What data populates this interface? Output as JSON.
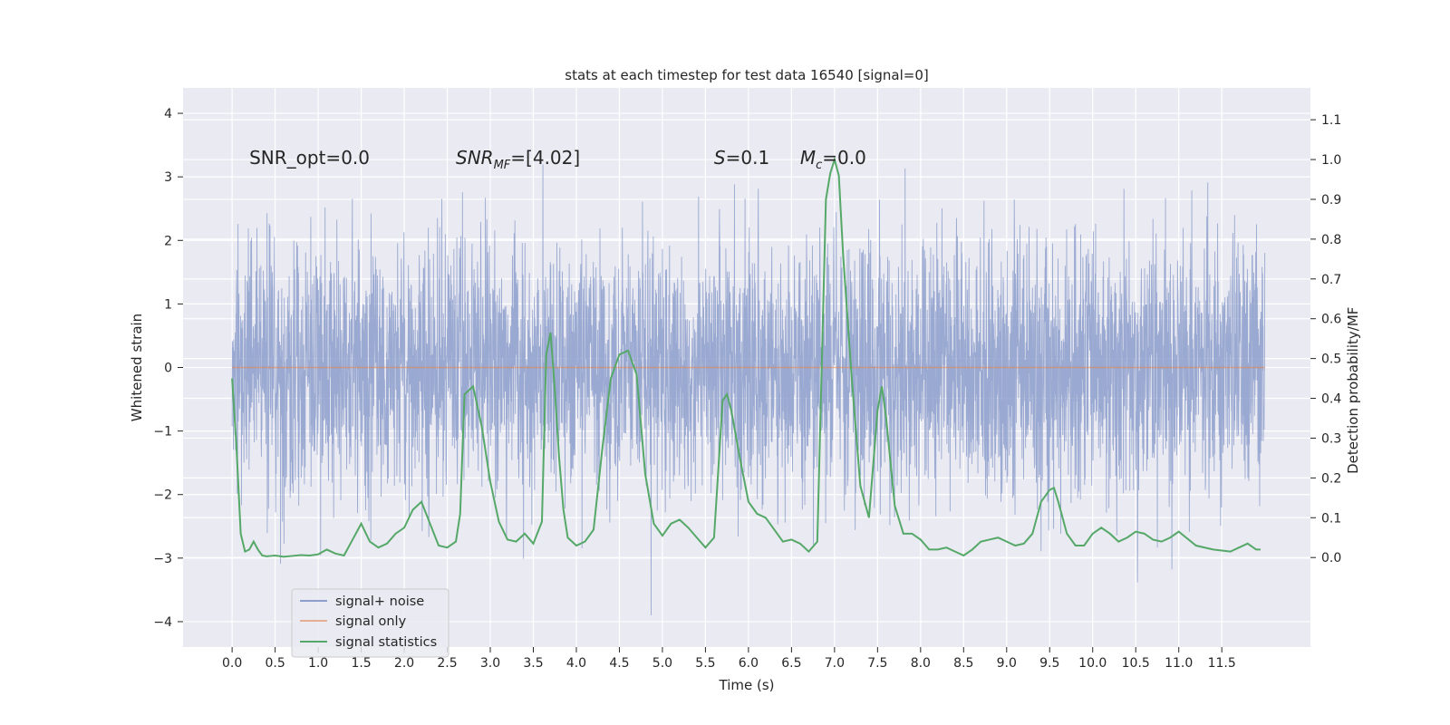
{
  "chart_data": {
    "type": "line",
    "title": "stats at each timestep for test data 16540 [signal=0]",
    "xlabel": "Time (s)",
    "ylabel": "Whitened strain",
    "y2label": "Detection probability/MF",
    "xlim": [
      -0.57,
      12.53
    ],
    "ylim": [
      -4.4,
      4.4
    ],
    "y2lim": [
      -0.225,
      1.18
    ],
    "x_ticks": [
      0.0,
      0.5,
      1.0,
      1.5,
      2.0,
      2.5,
      3.0,
      3.5,
      4.0,
      4.5,
      5.0,
      5.5,
      6.0,
      6.5,
      7.0,
      7.5,
      8.0,
      8.5,
      9.0,
      9.5,
      10.0,
      10.5,
      11.0,
      11.5
    ],
    "x_tick_labels": [
      "0.0",
      "0.5",
      "1.0",
      "1.5",
      "2.0",
      "2.5",
      "3.0",
      "3.5",
      "4.0",
      "4.5",
      "5.0",
      "5.5",
      "6.0",
      "6.5",
      "7.0",
      "7.5",
      "8.0",
      "8.5",
      "9.0",
      "9.5",
      "10.0",
      "10.5",
      "11.0",
      "11.5"
    ],
    "y_ticks": [
      4,
      3,
      2,
      1,
      0,
      -1,
      -2,
      -3,
      -4
    ],
    "y_tick_labels": [
      "4",
      "3",
      "2",
      "1",
      "0",
      "−1",
      "−2",
      "−3",
      "−4"
    ],
    "y2_ticks": [
      1.1,
      1.0,
      0.9,
      0.8,
      0.7,
      0.6,
      0.5,
      0.4,
      0.3,
      0.2,
      0.1,
      0.0
    ],
    "y2_tick_labels": [
      "1.1",
      "1.0",
      "0.9",
      "0.8",
      "0.7",
      "0.6",
      "0.5",
      "0.4",
      "0.3",
      "0.2",
      "0.1",
      "0.0"
    ],
    "grid": true,
    "legend_position": "lower-left",
    "annotations": [
      {
        "text": "SNR_opt=0.0",
        "x": 0.2,
        "y": 3.3
      },
      {
        "text": "SNR_MF=[4.02]",
        "x": 2.6,
        "y": 3.3
      },
      {
        "text": "S=0.1",
        "x": 5.6,
        "y": 3.3
      },
      {
        "text": "M_c=0.0",
        "x": 6.6,
        "y": 3.3
      }
    ],
    "series": [
      {
        "name": "signal+ noise",
        "axis": "left",
        "color": "#8c9ecb",
        "style": "dense noise trace, 0.0 to 12.0 s",
        "x_range": [
          0.0,
          12.0
        ],
        "core_band": [
          -1.7,
          1.35
        ],
        "peak_range": [
          -3.9,
          4.1
        ]
      },
      {
        "name": "signal only",
        "axis": "left",
        "color": "#dd8452",
        "x": [
          0.0,
          12.0
        ],
        "y": [
          0.0,
          0.0
        ]
      },
      {
        "name": "signal statistics",
        "axis": "right",
        "color": "#55a868",
        "x": [
          0.0,
          0.05,
          0.1,
          0.15,
          0.2,
          0.25,
          0.3,
          0.35,
          0.4,
          0.45,
          0.5,
          0.6,
          0.7,
          0.8,
          0.9,
          1.0,
          1.1,
          1.2,
          1.3,
          1.4,
          1.5,
          1.6,
          1.7,
          1.8,
          1.9,
          2.0,
          2.1,
          2.2,
          2.3,
          2.4,
          2.5,
          2.6,
          2.65,
          2.7,
          2.8,
          2.9,
          3.0,
          3.1,
          3.2,
          3.3,
          3.4,
          3.5,
          3.6,
          3.65,
          3.7,
          3.75,
          3.8,
          3.85,
          3.9,
          4.0,
          4.1,
          4.2,
          4.3,
          4.4,
          4.5,
          4.6,
          4.7,
          4.8,
          4.9,
          5.0,
          5.1,
          5.2,
          5.3,
          5.4,
          5.5,
          5.6,
          5.7,
          5.75,
          5.8,
          5.9,
          6.0,
          6.1,
          6.2,
          6.3,
          6.4,
          6.5,
          6.6,
          6.7,
          6.8,
          6.9,
          6.95,
          7.0,
          7.05,
          7.1,
          7.2,
          7.3,
          7.4,
          7.5,
          7.55,
          7.6,
          7.7,
          7.8,
          7.9,
          8.0,
          8.1,
          8.2,
          8.3,
          8.4,
          8.5,
          8.6,
          8.7,
          8.8,
          8.9,
          9.0,
          9.1,
          9.2,
          9.3,
          9.4,
          9.5,
          9.55,
          9.6,
          9.7,
          9.8,
          9.9,
          10.0,
          10.1,
          10.2,
          10.3,
          10.4,
          10.5,
          10.6,
          10.7,
          10.8,
          10.9,
          11.0,
          11.2,
          11.4,
          11.6,
          11.7,
          11.8,
          11.9,
          11.95
        ],
        "y": [
          0.45,
          0.28,
          0.06,
          0.015,
          0.02,
          0.04,
          0.02,
          0.005,
          0.003,
          0.004,
          0.005,
          0.002,
          0.004,
          0.006,
          0.005,
          0.008,
          0.02,
          0.01,
          0.005,
          0.045,
          0.085,
          0.04,
          0.025,
          0.035,
          0.06,
          0.075,
          0.12,
          0.14,
          0.085,
          0.03,
          0.025,
          0.04,
          0.11,
          0.41,
          0.43,
          0.33,
          0.19,
          0.09,
          0.045,
          0.04,
          0.06,
          0.035,
          0.09,
          0.51,
          0.565,
          0.42,
          0.25,
          0.12,
          0.05,
          0.03,
          0.04,
          0.07,
          0.27,
          0.45,
          0.51,
          0.52,
          0.46,
          0.21,
          0.085,
          0.055,
          0.085,
          0.095,
          0.075,
          0.05,
          0.025,
          0.05,
          0.395,
          0.41,
          0.37,
          0.25,
          0.14,
          0.11,
          0.1,
          0.07,
          0.04,
          0.045,
          0.035,
          0.015,
          0.04,
          0.9,
          0.965,
          1.0,
          0.96,
          0.76,
          0.45,
          0.18,
          0.1,
          0.37,
          0.43,
          0.35,
          0.13,
          0.06,
          0.06,
          0.045,
          0.02,
          0.02,
          0.025,
          0.015,
          0.005,
          0.02,
          0.04,
          0.045,
          0.05,
          0.04,
          0.03,
          0.035,
          0.06,
          0.14,
          0.17,
          0.175,
          0.14,
          0.06,
          0.03,
          0.03,
          0.06,
          0.075,
          0.06,
          0.04,
          0.05,
          0.065,
          0.06,
          0.045,
          0.04,
          0.05,
          0.065,
          0.03,
          0.02,
          0.015,
          0.025,
          0.035,
          0.02,
          0.02
        ]
      }
    ]
  }
}
